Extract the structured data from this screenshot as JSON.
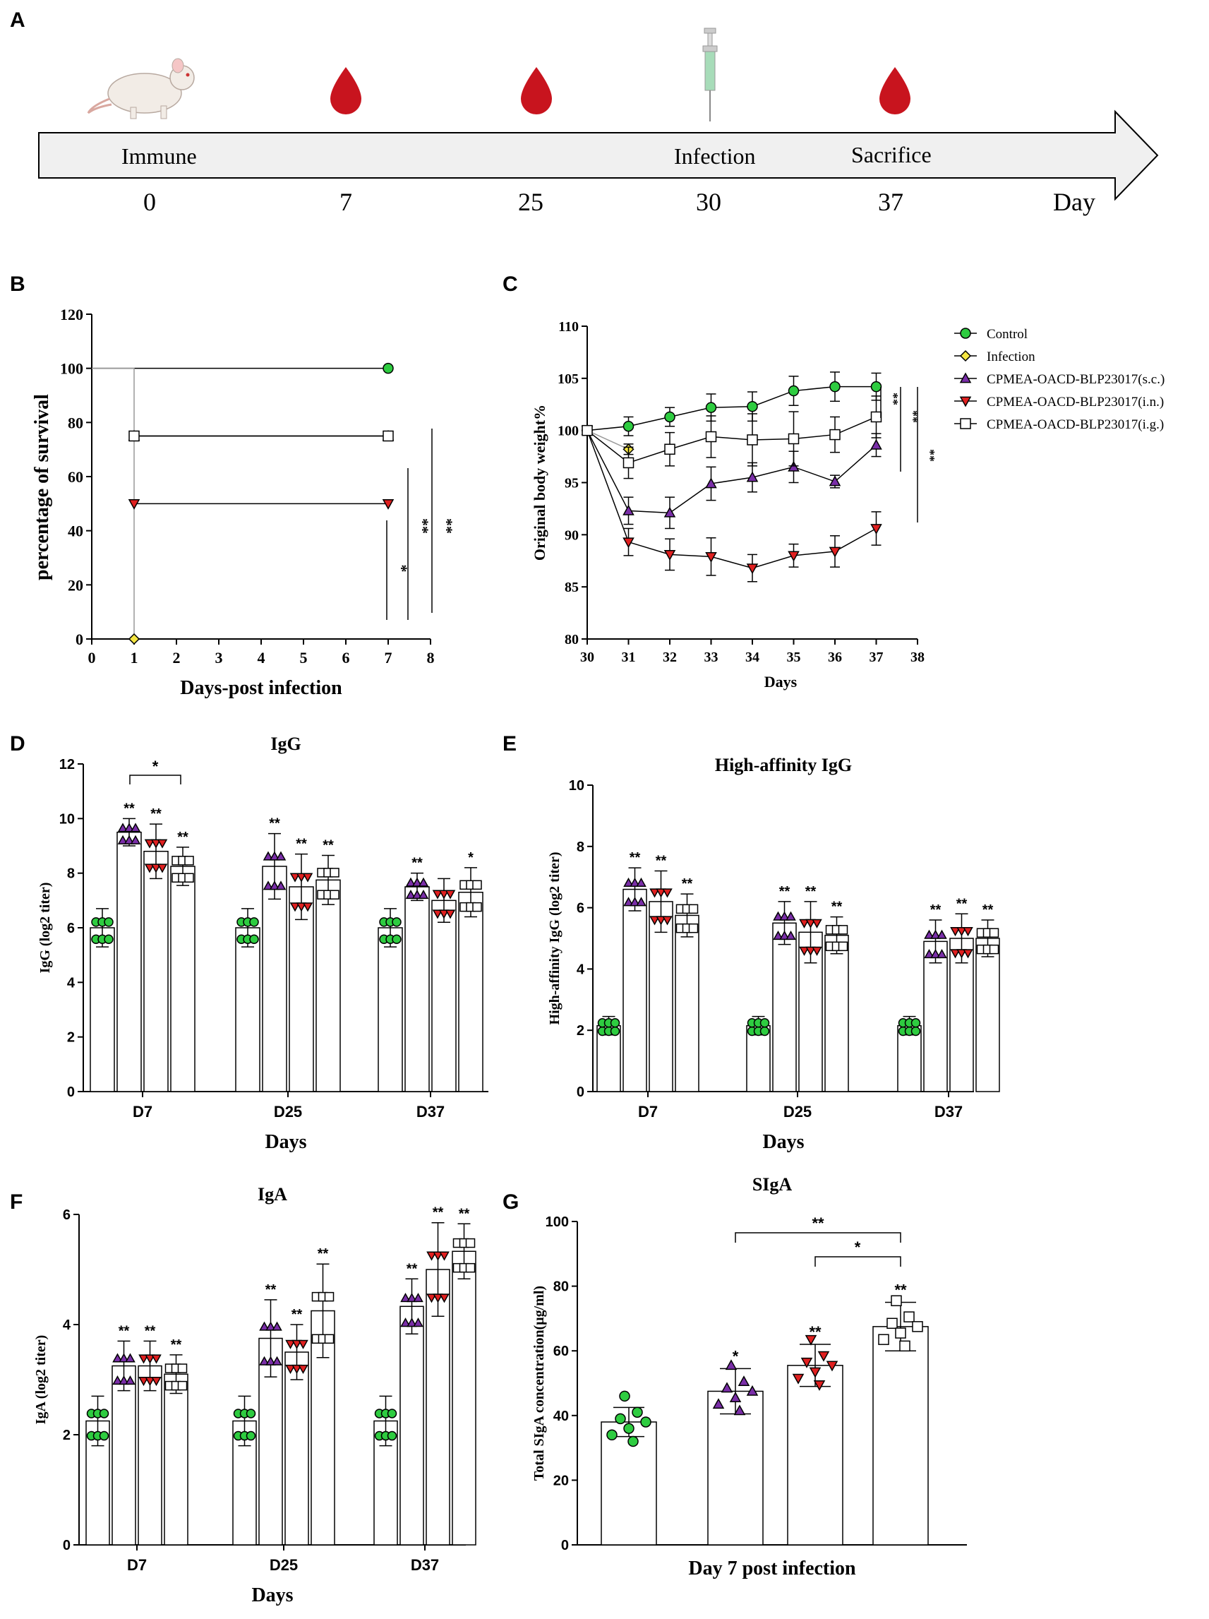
{
  "panels": [
    "A",
    "B",
    "C",
    "D",
    "E",
    "F",
    "G"
  ],
  "timeline": {
    "events": [
      "Immune",
      "Infection",
      "Sacrifice"
    ],
    "days": [
      "0",
      "7",
      "25",
      "30",
      "37"
    ],
    "unit": "Day"
  },
  "colors": {
    "Control": "#2ecc40",
    "Infection": "#f5e642",
    "sc": "#7a2ea8",
    "in": "#e02020",
    "ig": "#ffffff",
    "blood": "#c8141e",
    "arrow": "#f0f0f0"
  },
  "groups": [
    "Control",
    "Infection",
    "CPMEA-OACD-BLP23017(s.c.)",
    "CPMEA-OACD-BLP23017(i.n.)",
    "CPMEA-OACD-BLP23017(i.g.)"
  ],
  "chart_data": [
    {
      "panel": "B",
      "type": "line",
      "title": "",
      "xlabel": "Days-post infection",
      "ylabel": "percentage of survival",
      "xlim": [
        0,
        8
      ],
      "ylim": [
        0,
        120
      ],
      "xticks": [
        "0",
        "1",
        "2",
        "3",
        "4",
        "5",
        "6",
        "7",
        "8"
      ],
      "yticks": [
        "0",
        "20",
        "40",
        "60",
        "80",
        "100",
        "120"
      ],
      "series": [
        {
          "name": "Control",
          "x": [
            0,
            7
          ],
          "y": [
            100,
            100
          ]
        },
        {
          "name": "Infection",
          "x": [
            0,
            1,
            1
          ],
          "y": [
            100,
            100,
            0
          ]
        },
        {
          "name": "CPMEA-OACD-BLP23017(s.c.)",
          "x": [
            1,
            7
          ],
          "y": [
            75,
            75
          ]
        },
        {
          "name": "CPMEA-OACD-BLP23017(i.n.)",
          "x": [
            1,
            7
          ],
          "y": [
            50,
            50
          ]
        },
        {
          "name": "CPMEA-OACD-BLP23017(i.g.)",
          "x": [
            1,
            7
          ],
          "y": [
            75,
            75
          ]
        }
      ],
      "significance": [
        "*",
        "**",
        "**"
      ]
    },
    {
      "panel": "C",
      "type": "line",
      "title": "",
      "xlabel": "Days",
      "ylabel": "Original body weight%",
      "xlim": [
        30,
        38
      ],
      "ylim": [
        80,
        110
      ],
      "xticks": [
        "30",
        "31",
        "32",
        "33",
        "34",
        "35",
        "36",
        "37",
        "38"
      ],
      "yticks": [
        "80",
        "85",
        "90",
        "95",
        "100",
        "105",
        "110"
      ],
      "series": [
        {
          "name": "Control",
          "x": [
            30,
            31,
            32,
            33,
            34,
            35,
            36,
            37
          ],
          "y": [
            100,
            100.4,
            101.3,
            102.2,
            102.3,
            103.8,
            104.2,
            104.2
          ],
          "err": [
            0,
            0.9,
            0.9,
            1.3,
            1.4,
            1.4,
            1.4,
            1.3
          ]
        },
        {
          "name": "Infection",
          "x": [
            30,
            31
          ],
          "y": [
            100,
            98.2
          ],
          "err": [
            0,
            0.5
          ]
        },
        {
          "name": "CPMEA-OACD-BLP23017(s.c.)",
          "x": [
            30,
            31,
            32,
            33,
            34,
            35,
            36,
            37
          ],
          "y": [
            100,
            92.3,
            92.1,
            94.9,
            95.5,
            96.5,
            95.1,
            98.6
          ],
          "err": [
            0,
            1.3,
            1.5,
            1.6,
            1.4,
            1.5,
            0.6,
            1.1
          ]
        },
        {
          "name": "CPMEA-OACD-BLP23017(i.n.)",
          "x": [
            30,
            31,
            32,
            33,
            34,
            35,
            36,
            37
          ],
          "y": [
            100,
            89.3,
            88.1,
            87.9,
            86.8,
            88.0,
            88.4,
            90.6
          ],
          "err": [
            0,
            1.3,
            1.5,
            1.8,
            1.3,
            1.1,
            1.5,
            1.6
          ]
        },
        {
          "name": "CPMEA-OACD-BLP23017(i.g.)",
          "x": [
            30,
            31,
            32,
            33,
            34,
            35,
            36,
            37
          ],
          "y": [
            100,
            96.9,
            98.2,
            99.4,
            99.1,
            99.2,
            99.6,
            101.3
          ],
          "err": [
            0,
            1.5,
            1.6,
            2.0,
            2.5,
            2.6,
            1.7,
            2.0
          ]
        }
      ],
      "significance": [
        "**",
        "**",
        "**"
      ]
    },
    {
      "panel": "D",
      "type": "bar",
      "title": "IgG",
      "xlabel": "Days",
      "ylabel": "IgG (log2 titer)",
      "ylim": [
        0,
        12
      ],
      "yticks": [
        "0",
        "2",
        "4",
        "6",
        "8",
        "10",
        "12"
      ],
      "categories": [
        "D7",
        "D25",
        "D37"
      ],
      "series": [
        {
          "name": "Control",
          "values": [
            6,
            6,
            6
          ],
          "err": [
            0.7,
            0.7,
            0.7
          ],
          "stars": [
            "",
            "",
            ""
          ]
        },
        {
          "name": "CPMEA-OACD-BLP23017(s.c.)",
          "values": [
            9.5,
            8.25,
            7.5
          ],
          "err": [
            0.5,
            1.2,
            0.5
          ],
          "stars": [
            "**",
            "**",
            "**"
          ]
        },
        {
          "name": "CPMEA-OACD-BLP23017(i.n.)",
          "values": [
            8.8,
            7.5,
            7.0
          ],
          "err": [
            1.0,
            1.2,
            0.8
          ],
          "stars": [
            "**",
            "**",
            ""
          ]
        },
        {
          "name": "CPMEA-OACD-BLP23017(i.g.)",
          "values": [
            8.25,
            7.75,
            7.3
          ],
          "err": [
            0.7,
            0.9,
            0.9
          ],
          "stars": [
            "**",
            "**",
            "*"
          ]
        }
      ],
      "bracket": "*"
    },
    {
      "panel": "E",
      "type": "bar",
      "title": "High-affinity IgG",
      "xlabel": "Days",
      "ylabel": "High-affinity IgG (log2 titer)",
      "ylim": [
        0,
        10
      ],
      "yticks": [
        "0",
        "2",
        "4",
        "6",
        "8",
        "10"
      ],
      "categories": [
        "D7",
        "D25",
        "D37"
      ],
      "series": [
        {
          "name": "Control",
          "values": [
            2.15,
            2.15,
            2.15
          ],
          "err": [
            0.3,
            0.3,
            0.3
          ],
          "stars": [
            "",
            "",
            ""
          ]
        },
        {
          "name": "CPMEA-OACD-BLP23017(s.c.)",
          "values": [
            6.6,
            5.5,
            4.9
          ],
          "err": [
            0.7,
            0.7,
            0.7
          ],
          "stars": [
            "**",
            "**",
            "**"
          ]
        },
        {
          "name": "CPMEA-OACD-BLP23017(i.n.)",
          "values": [
            6.2,
            5.2,
            5.0
          ],
          "err": [
            1.0,
            1.0,
            0.8
          ],
          "stars": [
            "**",
            "**",
            "**"
          ]
        },
        {
          "name": "CPMEA-OACD-BLP23017(i.g.)",
          "values": [
            5.75,
            5.1,
            5.0
          ],
          "err": [
            0.7,
            0.6,
            0.6
          ],
          "stars": [
            "**",
            "**",
            "**"
          ]
        }
      ]
    },
    {
      "panel": "F",
      "type": "bar",
      "title": "IgA",
      "xlabel": "Days",
      "ylabel": "IgA (log2 titer)",
      "ylim": [
        0,
        6
      ],
      "yticks": [
        "0",
        "2",
        "4",
        "6"
      ],
      "categories": [
        "D7",
        "D25",
        "D37"
      ],
      "series": [
        {
          "name": "Control",
          "values": [
            2.25,
            2.25,
            2.25
          ],
          "err": [
            0.45,
            0.45,
            0.45
          ],
          "stars": [
            "",
            "",
            ""
          ]
        },
        {
          "name": "CPMEA-OACD-BLP23017(s.c.)",
          "values": [
            3.25,
            3.75,
            4.33
          ],
          "err": [
            0.45,
            0.7,
            0.5
          ],
          "stars": [
            "**",
            "**",
            "**"
          ]
        },
        {
          "name": "CPMEA-OACD-BLP23017(i.n.)",
          "values": [
            3.25,
            3.5,
            5.0
          ],
          "err": [
            0.45,
            0.5,
            0.85
          ],
          "stars": [
            "**",
            "**",
            "**"
          ]
        },
        {
          "name": "CPMEA-OACD-BLP23017(i.g.)",
          "values": [
            3.1,
            4.25,
            5.33
          ],
          "err": [
            0.35,
            0.85,
            0.5
          ],
          "stars": [
            "**",
            "**",
            "**"
          ]
        }
      ]
    },
    {
      "panel": "G",
      "type": "bar",
      "title": "SIgA",
      "xlabel": "Day 7 post infection",
      "ylabel": "Total SIgA concentration(μg/ml)",
      "ylim": [
        0,
        100
      ],
      "yticks": [
        "0",
        "20",
        "40",
        "60",
        "80",
        "100"
      ],
      "categories": [
        "Control",
        "CPMEA-OACD-BLP23017(s.c.)",
        "CPMEA-OACD-BLP23017(i.n.)",
        "CPMEA-OACD-BLP23017(i.g.)"
      ],
      "values": [
        38,
        47.5,
        55.5,
        67.5
      ],
      "err": [
        4.5,
        7,
        6.5,
        7.5
      ],
      "stars": [
        "",
        "*",
        "**",
        "**"
      ],
      "brackets": [
        "**",
        "*"
      ]
    }
  ]
}
